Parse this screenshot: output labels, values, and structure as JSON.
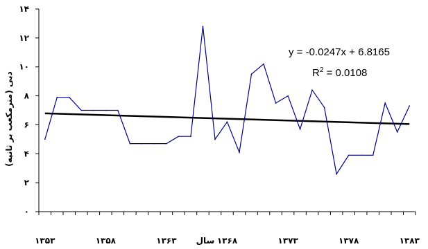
{
  "chart_data": {
    "type": "line",
    "title": "",
    "xlabel": "سال",
    "ylabel": "دبی (مترمکعب بر ثانیه)",
    "ylim": [
      0,
      14
    ],
    "xlim": [
      1352.5,
      1383.5
    ],
    "y_ticks": [
      0,
      2,
      4,
      6,
      8,
      10,
      12,
      14
    ],
    "y_tick_labels": [
      "۰",
      "۲",
      "۴",
      "۶",
      "۸",
      "۱۰",
      "۱۲",
      "۱۴"
    ],
    "x_ticks": [
      1353,
      1358,
      1363,
      1368,
      1373,
      1378,
      1383
    ],
    "x_tick_labels": [
      "۱۳۵۳",
      "۱۳۵۸",
      "۱۳۶۳",
      "۱۳۶۸",
      "۱۳۷۳",
      "۱۳۷۸",
      "۱۳۸۳"
    ],
    "grid": false,
    "x": [
      1353,
      1354,
      1355,
      1356,
      1357,
      1358,
      1359,
      1360,
      1361,
      1362,
      1363,
      1364,
      1365,
      1366,
      1367,
      1368,
      1369,
      1370,
      1371,
      1372,
      1373,
      1374,
      1375,
      1376,
      1377,
      1378,
      1379,
      1380,
      1381,
      1382,
      1383
    ],
    "series": [
      {
        "values": [
          5.0,
          7.9,
          7.9,
          7.0,
          7.0,
          7.0,
          7.0,
          4.7,
          4.7,
          4.7,
          4.7,
          5.2,
          5.2,
          12.8,
          5.0,
          6.2,
          4.1,
          9.5,
          10.2,
          7.5,
          8.0,
          5.7,
          8.4,
          7.2,
          2.6,
          3.9,
          3.9,
          3.9,
          7.5,
          5.5,
          7.3
        ],
        "color": "#00008b"
      },
      {
        "type": "trendline",
        "values_at_ends": [
          6.79,
          6.05
        ],
        "color": "#000000"
      }
    ],
    "annotations": [
      {
        "equation": "y = -0.0247x + 6.8165"
      },
      {
        "r_squared_prefix": "R",
        "r_squared_sup": "2",
        "r_squared_value": " = 0.0108"
      }
    ]
  }
}
